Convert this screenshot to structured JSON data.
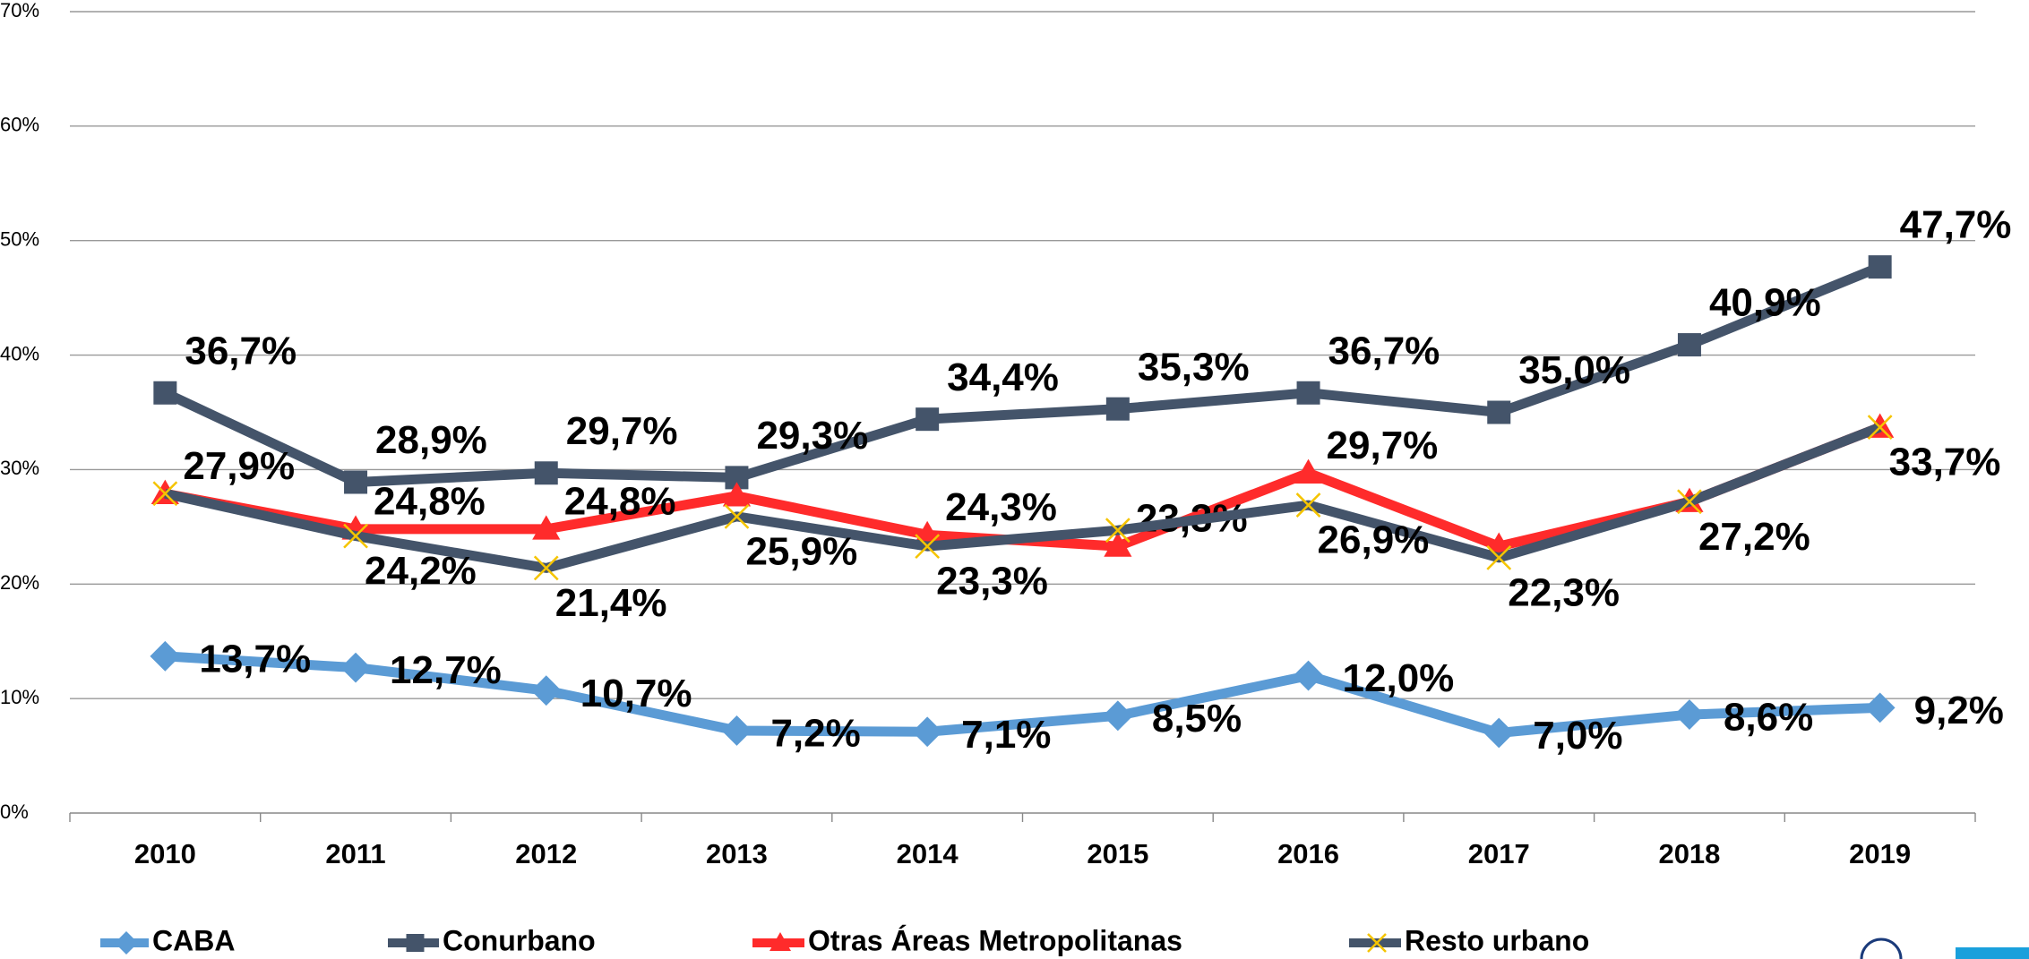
{
  "chart_data": {
    "type": "line",
    "categories": [
      "2010",
      "2011",
      "2012",
      "2013",
      "2014",
      "2015",
      "2016",
      "2017",
      "2018",
      "2019"
    ],
    "ylim": [
      0,
      70
    ],
    "yticks": [
      {
        "value": 0,
        "label": "0%"
      },
      {
        "value": 10,
        "label": "10%"
      },
      {
        "value": 20,
        "label": "20%"
      },
      {
        "value": 30,
        "label": "30%"
      },
      {
        "value": 40,
        "label": "40%"
      },
      {
        "value": 50,
        "label": "50%"
      },
      {
        "value": 60,
        "label": "60%"
      },
      {
        "value": 70,
        "label": "70%"
      }
    ],
    "grid": true,
    "legend": "bottom",
    "series": [
      {
        "name": "CABA",
        "color": "#5b9bd5",
        "marker": "diamond",
        "values": [
          13.7,
          12.7,
          10.7,
          7.2,
          7.1,
          8.5,
          12.0,
          7.0,
          8.6,
          9.2
        ],
        "value_labels": [
          "13,7%",
          "12,7%",
          "10,7%",
          "7,2%",
          "7,1%",
          "8,5%",
          "12,0%",
          "7,0%",
          "8,6%",
          "9,2%"
        ]
      },
      {
        "name": "Conurbano",
        "color": "#44546a",
        "marker": "square",
        "values": [
          36.7,
          28.9,
          29.7,
          29.3,
          34.4,
          35.3,
          36.7,
          35.0,
          40.9,
          47.7
        ],
        "value_labels": [
          "36,7%",
          "28,9%",
          "29,7%",
          "29,3%",
          "34,4%",
          "35,3%",
          "36,7%",
          "35,0%",
          "40,9%",
          "47,7%"
        ]
      },
      {
        "name": "Otras Áreas Metropolitanas",
        "color": "#ff2b2b",
        "marker": "triangle",
        "values": [
          27.9,
          24.8,
          24.8,
          27.7,
          24.3,
          23.3,
          29.7,
          23.3,
          27.2,
          33.7
        ],
        "value_labels": [
          "27,9%",
          "24,8%",
          "24,8%",
          null,
          "24,3%",
          "23,3%",
          "29,7%",
          null,
          null,
          null
        ]
      },
      {
        "name": "Resto urbano",
        "color": "#44546a",
        "marker": "x",
        "marker_color": "#f5c400",
        "values": [
          27.9,
          24.2,
          21.4,
          25.9,
          23.3,
          24.7,
          26.9,
          22.3,
          27.2,
          33.7
        ],
        "value_labels": [
          null,
          "24,2%",
          "21,4%",
          "25,9%",
          "23,3%",
          null,
          "26,9%",
          "22,3%",
          "27,2%",
          "33,7%"
        ]
      }
    ]
  }
}
